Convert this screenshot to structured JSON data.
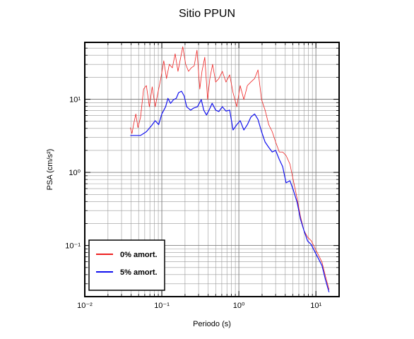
{
  "chart_data": {
    "type": "line",
    "title": "Sitio PPUN",
    "x_label": "Periodo (s)",
    "y_label": "PSA (cm/s²)",
    "x_log": true,
    "y_log": true,
    "grid": true,
    "minor_grid": true,
    "legend_position": "lower left",
    "xlim": [
      0.01,
      20
    ],
    "ylim": [
      0.02,
      60
    ],
    "xticks": [
      {
        "value": 0.01,
        "label": "10⁻²"
      },
      {
        "value": 0.1,
        "label": "10⁻¹"
      },
      {
        "value": 1,
        "label": "10⁰"
      },
      {
        "value": 10,
        "label": "10¹"
      }
    ],
    "yticks": [
      {
        "value": 0.1,
        "label": "10⁻¹"
      },
      {
        "value": 1,
        "label": "10⁰"
      },
      {
        "value": 10,
        "label": "10¹"
      }
    ],
    "series": [
      {
        "name": "0% amort.",
        "color": "#ee2222",
        "width": 0.8,
        "x": [
          0.039,
          0.041,
          0.043,
          0.046,
          0.049,
          0.053,
          0.058,
          0.063,
          0.069,
          0.075,
          0.082,
          0.089,
          0.097,
          0.106,
          0.115,
          0.125,
          0.137,
          0.149,
          0.162,
          0.176,
          0.187,
          0.204,
          0.222,
          0.241,
          0.263,
          0.286,
          0.311,
          0.332,
          0.361,
          0.393,
          0.42,
          0.456,
          0.5,
          0.55,
          0.61,
          0.68,
          0.76,
          0.84,
          0.94,
          1.04,
          1.16,
          1.29,
          1.43,
          1.6,
          1.77,
          1.97,
          2.19,
          2.44,
          2.71,
          3.0,
          3.35,
          3.7,
          4.1,
          4.6,
          5.1,
          5.7,
          6.3,
          7.0,
          7.8,
          8.7,
          9.7,
          10.8,
          12,
          13.3,
          14.8
        ],
        "values": [
          4.1,
          3.4,
          4.5,
          6.3,
          4.1,
          5.7,
          13.8,
          15.4,
          7.9,
          14.8,
          7.9,
          12.3,
          19.2,
          33.6,
          19.2,
          30.1,
          26.9,
          41.9,
          24.1,
          37.6,
          52.3,
          30.1,
          24.1,
          26.9,
          28.7,
          47.0,
          13.8,
          24.1,
          37.6,
          9.9,
          19.2,
          30.1,
          17.2,
          19.2,
          24.1,
          17.2,
          21.6,
          12.3,
          7.9,
          15.4,
          9.9,
          15.4,
          17.2,
          19.2,
          25.2,
          9.9,
          7.1,
          4.5,
          3.6,
          2.6,
          1.9,
          1.9,
          1.7,
          1.3,
          0.77,
          0.44,
          0.25,
          0.16,
          0.13,
          0.116,
          0.092,
          0.074,
          0.059,
          0.038,
          0.025
        ]
      },
      {
        "name": "5% amort.",
        "color": "#1111ee",
        "width": 1.2,
        "x": [
          0.039,
          0.053,
          0.063,
          0.074,
          0.082,
          0.091,
          0.1,
          0.112,
          0.12,
          0.13,
          0.142,
          0.154,
          0.165,
          0.18,
          0.195,
          0.21,
          0.236,
          0.26,
          0.29,
          0.325,
          0.35,
          0.38,
          0.41,
          0.45,
          0.5,
          0.55,
          0.61,
          0.68,
          0.76,
          0.84,
          0.94,
          1.04,
          1.16,
          1.29,
          1.43,
          1.6,
          1.77,
          1.97,
          2.19,
          2.44,
          2.71,
          3.0,
          3.35,
          3.7,
          4.1,
          4.6,
          5.1,
          5.7,
          6.3,
          7.0,
          7.8,
          8.7,
          9.7,
          10.8,
          12,
          13.3,
          14.8
        ],
        "values": [
          3.2,
          3.2,
          3.6,
          4.4,
          5.1,
          4.5,
          6.3,
          7.9,
          10.3,
          8.8,
          9.9,
          10.3,
          12.3,
          12.9,
          11.1,
          7.9,
          7.1,
          7.6,
          7.9,
          9.9,
          7.1,
          6.1,
          7.1,
          8.8,
          7.1,
          6.8,
          7.9,
          6.9,
          7.1,
          3.8,
          4.5,
          5.1,
          3.8,
          4.5,
          5.7,
          6.3,
          5.3,
          3.6,
          2.6,
          2.2,
          1.9,
          2.0,
          1.5,
          1.2,
          0.72,
          0.77,
          0.57,
          0.39,
          0.23,
          0.16,
          0.115,
          0.103,
          0.082,
          0.066,
          0.053,
          0.034,
          0.023
        ]
      }
    ]
  }
}
